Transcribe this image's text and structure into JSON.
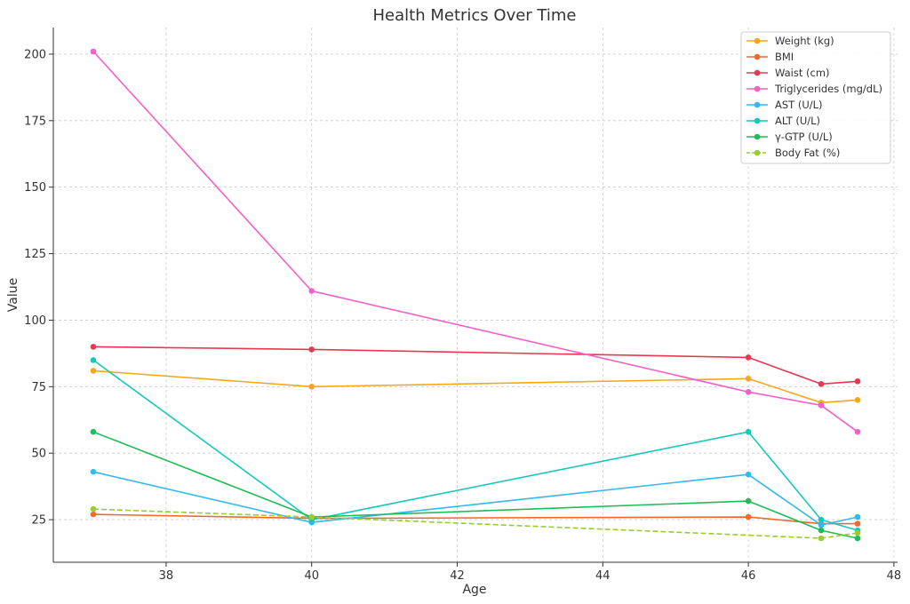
{
  "chart_data": {
    "type": "line",
    "title": "Health Metrics Over Time",
    "xlabel": "Age",
    "ylabel": "Value",
    "xlim": [
      36.45,
      48.05
    ],
    "ylim": [
      9,
      210
    ],
    "xticks": [
      38,
      40,
      42,
      44,
      46,
      48
    ],
    "yticks": [
      25,
      50,
      75,
      100,
      125,
      150,
      175,
      200
    ],
    "grid": true,
    "legend_position": "top-right",
    "x": [
      37,
      40,
      46,
      47,
      47.5
    ],
    "series": [
      {
        "name": "Weight (kg)",
        "color": "#f5a81c",
        "dashed": false,
        "values": [
          81,
          75,
          78,
          69,
          70
        ]
      },
      {
        "name": "BMI",
        "color": "#ee6b2d",
        "dashed": false,
        "values": [
          27,
          25.5,
          26,
          23.5,
          23.5
        ]
      },
      {
        "name": "Waist (cm)",
        "color": "#e8384f",
        "dashed": false,
        "values": [
          90,
          89,
          86,
          76,
          77
        ]
      },
      {
        "name": "Triglycerides (mg/dL)",
        "color": "#f560c8",
        "dashed": false,
        "values": [
          201,
          111,
          73,
          68,
          58
        ]
      },
      {
        "name": "AST (U/L)",
        "color": "#33b8f0",
        "dashed": false,
        "values": [
          43,
          24,
          42,
          23,
          26
        ]
      },
      {
        "name": "ALT (U/L)",
        "color": "#15c9bb",
        "dashed": false,
        "values": [
          85,
          25,
          58,
          25,
          21
        ]
      },
      {
        "name": "γ-GTP (U/L)",
        "color": "#1fbd57",
        "dashed": false,
        "values": [
          58,
          26,
          32,
          21,
          18
        ]
      },
      {
        "name": "Body Fat (%)",
        "color": "#9acd32",
        "dashed": true,
        "values": [
          29,
          26,
          null,
          18,
          20
        ]
      }
    ]
  }
}
